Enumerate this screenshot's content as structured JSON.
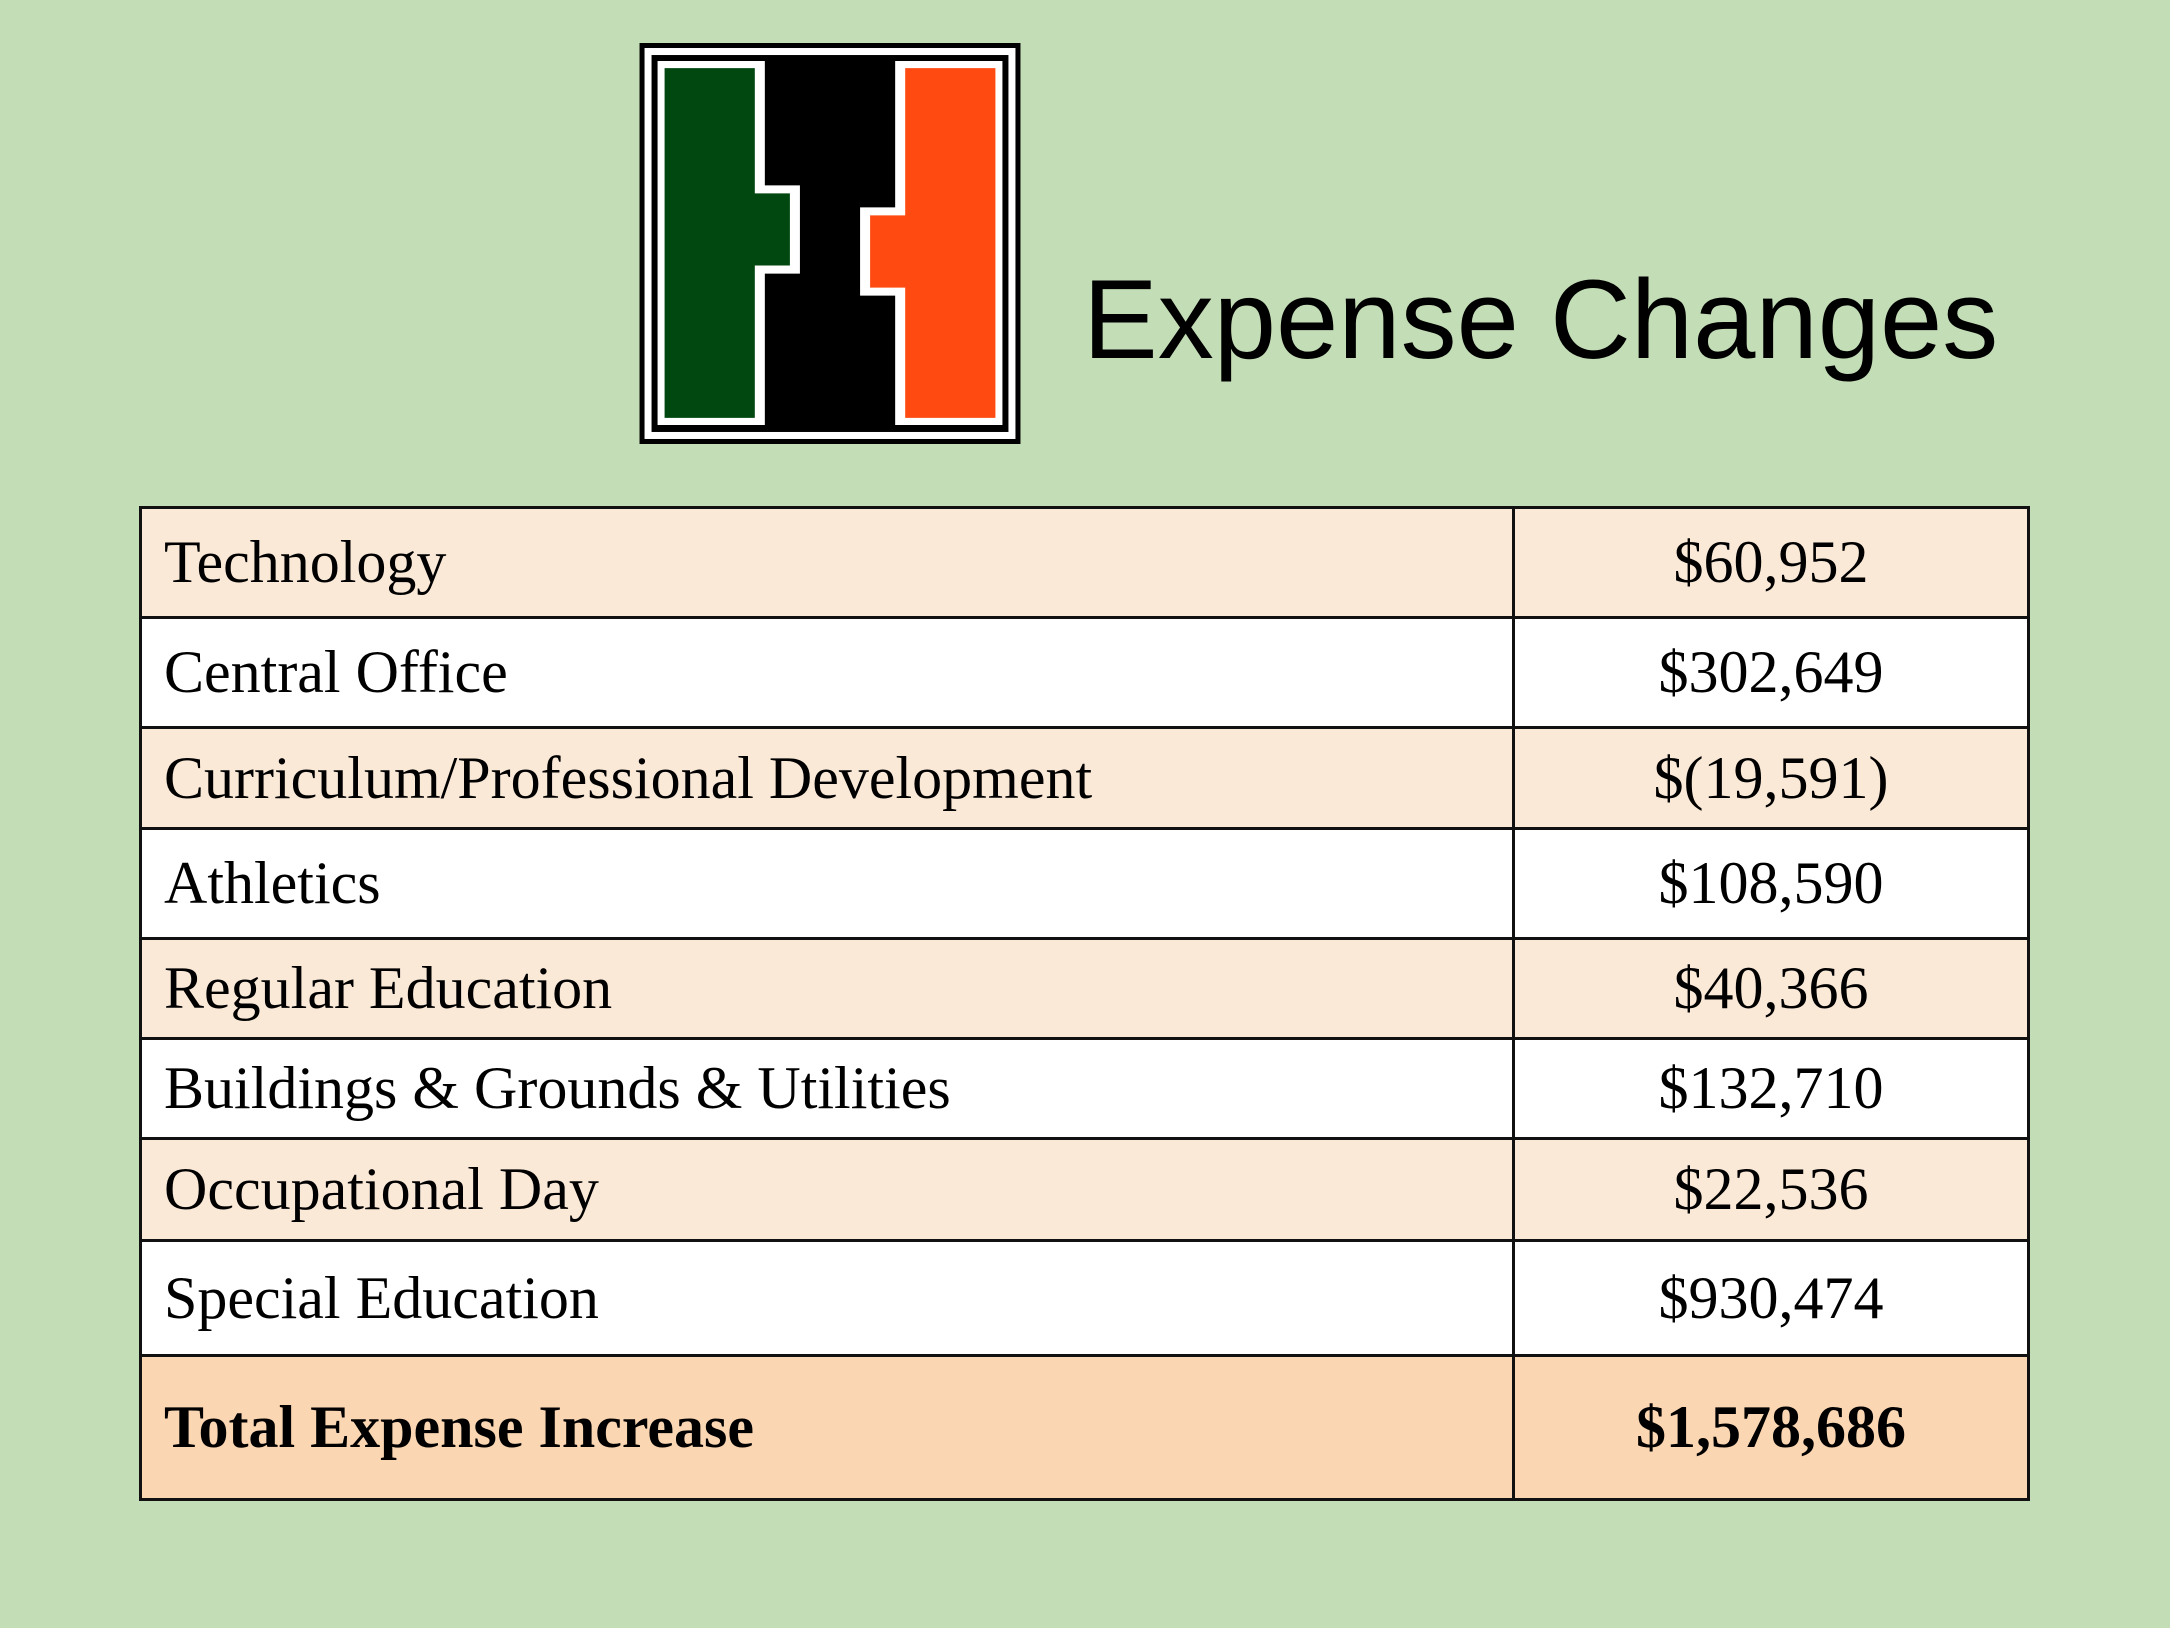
{
  "slide": {
    "title": "Expense Changes",
    "logo": {
      "icon": "school-h-logo-icon",
      "colors": {
        "left": "#004710",
        "center": "#000000",
        "right": "#ff4a12",
        "outline": "#ffffff"
      }
    }
  },
  "table": {
    "rows": [
      {
        "label": "Technology",
        "amount": "$60,952"
      },
      {
        "label": "Central Office",
        "amount": "$302,649"
      },
      {
        "label": "Curriculum/Professional Development",
        "amount": "$(19,591)"
      },
      {
        "label": "Athletics",
        "amount": "$108,590"
      },
      {
        "label": "Regular Education",
        "amount": "$40,366"
      },
      {
        "label": "Buildings & Grounds & Utilities",
        "amount": "$132,710"
      },
      {
        "label": "Occupational Day",
        "amount": "$22,536"
      },
      {
        "label": "Special Education",
        "amount": "$930,474"
      }
    ],
    "total": {
      "label": "Total Expense Increase",
      "amount": "$1,578,686"
    }
  },
  "colors": {
    "background": "#c3ddb6",
    "row_shaded": "#fbe9d8",
    "row_plain": "#ffffff",
    "total_row": "#fbd6b2"
  }
}
